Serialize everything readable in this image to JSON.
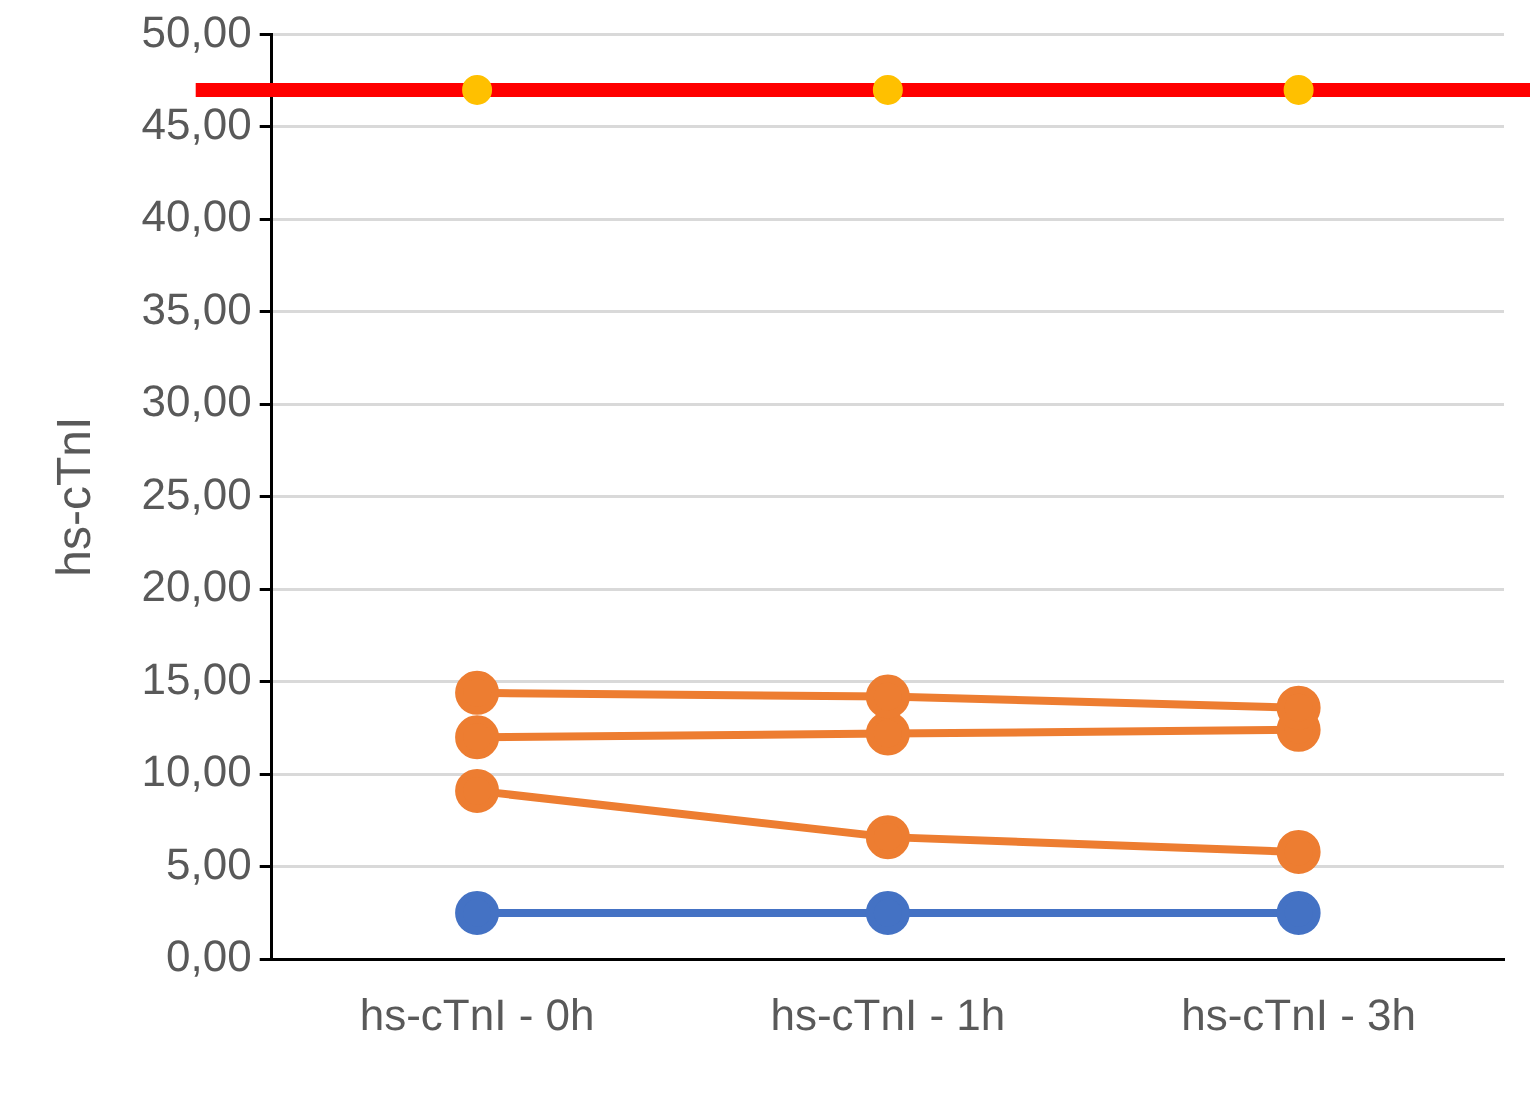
{
  "chart_data": {
    "type": "line",
    "ylabel": "hs-cTnI",
    "categories": [
      "hs-cTnI - 0h",
      "hs-cTnI - 1h",
      "hs-cTnI - 3h"
    ],
    "series": [
      {
        "type": "scatter",
        "color": "#ffc000",
        "values": [
          47,
          47,
          47
        ]
      },
      {
        "color": "#ed7d31",
        "values": [
          14.4,
          14.2,
          13.6
        ]
      },
      {
        "color": "#ed7d31",
        "values": [
          12.0,
          12.2,
          12.4
        ]
      },
      {
        "color": "#ed7d31",
        "values": [
          9.1,
          6.6,
          5.8
        ]
      },
      {
        "color": "#4472c4",
        "values": [
          2.5,
          2.5,
          2.5
        ]
      }
    ],
    "ylim": [
      0,
      50
    ],
    "yticks": [
      {
        "value": 0,
        "label": "0,00"
      },
      {
        "value": 5,
        "label": "5,00"
      },
      {
        "value": 10,
        "label": "10,00"
      },
      {
        "value": 15,
        "label": "15,00"
      },
      {
        "value": 20,
        "label": "20,00"
      },
      {
        "value": 25,
        "label": "25,00"
      },
      {
        "value": 30,
        "label": "30,00"
      },
      {
        "value": 35,
        "label": "35,00"
      },
      {
        "value": 40,
        "label": "40,00"
      },
      {
        "value": 45,
        "label": "45,00"
      },
      {
        "value": 50,
        "label": "50,00"
      }
    ],
    "ref_lines": [
      {
        "axis": "y",
        "value": 47,
        "color": "#ff0000"
      }
    ],
    "grid": "y",
    "legend": false,
    "marker": "circle",
    "line_style": "solid"
  }
}
